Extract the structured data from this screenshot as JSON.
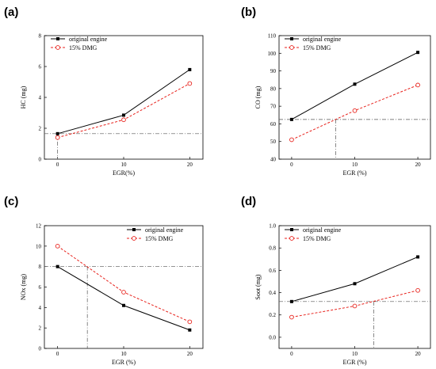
{
  "chart_data": [
    {
      "type": "line",
      "panel_label": "(a)",
      "xlabel": "EGR(%)",
      "ylabel": "HC (mg)",
      "x": [
        0,
        10,
        20
      ],
      "xlim": [
        -2,
        22
      ],
      "ylim": [
        0,
        8
      ],
      "xticks": [
        0,
        10,
        20
      ],
      "yticks": [
        0,
        2,
        4,
        6,
        8
      ],
      "series": [
        {
          "name": "original engine",
          "values": [
            1.65,
            2.85,
            5.8
          ],
          "color": "#000000",
          "style": "solid",
          "marker": "square"
        },
        {
          "name": "15% DMG",
          "values": [
            1.4,
            2.55,
            4.9
          ],
          "color": "#e8221c",
          "style": "dashed",
          "marker": "open-circle"
        }
      ],
      "reference_lines": {
        "y": 1.65,
        "x": 0
      },
      "legend": "top-left",
      "grid": false
    },
    {
      "type": "line",
      "panel_label": "(b)",
      "xlabel": "EGR (%)",
      "ylabel": "CO (mg)",
      "x": [
        0,
        10,
        20
      ],
      "xlim": [
        -2,
        22
      ],
      "ylim": [
        40,
        110
      ],
      "xticks": [
        0,
        10,
        20
      ],
      "yticks": [
        40,
        50,
        60,
        70,
        80,
        90,
        100,
        110
      ],
      "series": [
        {
          "name": "original engine",
          "values": [
            62.5,
            82.5,
            100.5
          ],
          "color": "#000000",
          "style": "solid",
          "marker": "square"
        },
        {
          "name": "15% DMG",
          "values": [
            51,
            67.5,
            82
          ],
          "color": "#e8221c",
          "style": "dashed",
          "marker": "open-circle"
        }
      ],
      "reference_lines": {
        "y": 62.5,
        "x": 7
      },
      "legend": "top-left",
      "grid": false
    },
    {
      "type": "line",
      "panel_label": "(c)",
      "xlabel": "EGR (%)",
      "ylabel": "NOx (mg)",
      "x": [
        0,
        10,
        20
      ],
      "xlim": [
        -2,
        22
      ],
      "ylim": [
        0,
        12
      ],
      "xticks": [
        0,
        10,
        20
      ],
      "yticks": [
        0,
        2,
        4,
        6,
        8,
        10,
        12
      ],
      "series": [
        {
          "name": "original engine",
          "values": [
            8,
            4.2,
            1.8
          ],
          "color": "#000000",
          "style": "solid",
          "marker": "square"
        },
        {
          "name": "15% DMG",
          "values": [
            10,
            5.5,
            2.6
          ],
          "color": "#e8221c",
          "style": "dashed",
          "marker": "open-circle"
        }
      ],
      "reference_lines": {
        "y": 8,
        "x": 4.5
      },
      "legend": "top-right",
      "grid": false
    },
    {
      "type": "line",
      "panel_label": "(d)",
      "xlabel": "EGR (%)",
      "ylabel": "Soot (mg)",
      "x": [
        0,
        10,
        20
      ],
      "xlim": [
        -2,
        22
      ],
      "ylim": [
        -0.1,
        1.0
      ],
      "xticks": [
        0,
        10,
        20
      ],
      "yticks": [
        0.0,
        0.2,
        0.4,
        0.6,
        0.8,
        1.0
      ],
      "ytick_labels": [
        "0.0",
        "0.2",
        "0.4",
        "0.6",
        "0.8",
        "1.0"
      ],
      "series": [
        {
          "name": "original engine",
          "values": [
            0.32,
            0.48,
            0.72
          ],
          "color": "#000000",
          "style": "solid",
          "marker": "square"
        },
        {
          "name": "15% DMG",
          "values": [
            0.18,
            0.28,
            0.42
          ],
          "color": "#e8221c",
          "style": "dashed",
          "marker": "open-circle"
        }
      ],
      "reference_lines": {
        "y": 0.32,
        "x": 13
      },
      "legend": "top-left",
      "grid": false
    }
  ]
}
